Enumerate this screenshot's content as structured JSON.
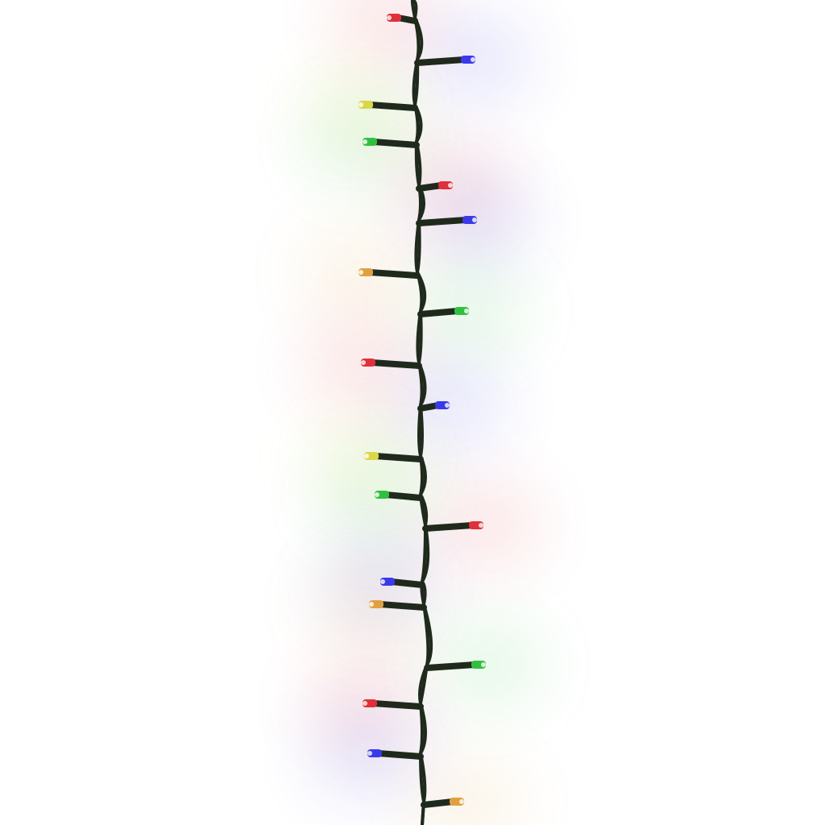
{
  "photo": {
    "subject": "led-string-lights",
    "background_color": "#ffffff",
    "wire_color": "#1f2a1c",
    "led_colors": {
      "red": "#e0303a",
      "blue": "#3a3ae8",
      "yellow": "#d8d84a",
      "green": "#30c040",
      "amber": "#e0a040"
    },
    "leds": [
      "red",
      "blue",
      "yellow",
      "green",
      "red",
      "blue",
      "amber",
      "green",
      "red",
      "blue",
      "yellow",
      "green",
      "red",
      "blue",
      "amber",
      "green",
      "red",
      "blue",
      "amber"
    ]
  }
}
